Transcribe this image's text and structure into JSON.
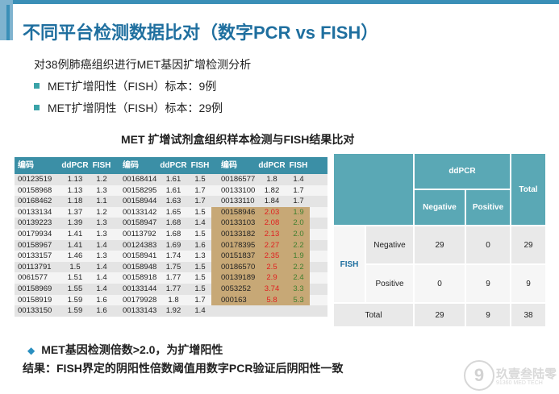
{
  "slide": {
    "title": "不同平台检测数据比对（数字PCR vs FISH）",
    "intro": "对38例肺癌组织进行MET基因扩增检测分析",
    "bullets": [
      "MET扩增阳性（FISH）标本：9例",
      "MET扩增阴性（FISH）标本：29例"
    ],
    "table_title": "MET 扩增试剂盒组织样本检测与FISH结果比对",
    "note1": "MET基因检测倍数>2.0，为扩增阳性",
    "note2": "结果：FISH界定的阴阳性倍数阈值用数字PCR验证后阴阳性一致",
    "logo": {
      "text": "玖壹叁陆零",
      "sub": "91360 MED TECH",
      "glyph": "9"
    }
  },
  "data_table": {
    "headers": [
      "编码",
      "ddPCR",
      "FISH",
      "编码",
      "ddPCR",
      "FISH",
      "编码",
      "ddPCR",
      "FISH"
    ],
    "rows": [
      [
        [
          "00123519",
          "1.13",
          "1.2"
        ],
        [
          "00168414",
          "1.61",
          "1.5"
        ],
        [
          "00186577",
          "1.8",
          "1.4"
        ]
      ],
      [
        [
          "00158968",
          "1.13",
          "1.3"
        ],
        [
          "00158295",
          "1.61",
          "1.7"
        ],
        [
          "00133100",
          "1.82",
          "1.7"
        ]
      ],
      [
        [
          "00168462",
          "1.18",
          "1.1"
        ],
        [
          "00158944",
          "1.63",
          "1.7"
        ],
        [
          "00133110",
          "1.84",
          "1.7"
        ]
      ],
      [
        [
          "00133134",
          "1.37",
          "1.2"
        ],
        [
          "00133142",
          "1.65",
          "1.5"
        ],
        [
          "00158946",
          "2.03",
          "1.9"
        ]
      ],
      [
        [
          "00139223",
          "1.39",
          "1.3"
        ],
        [
          "00158947",
          "1.68",
          "1.4"
        ],
        [
          "00133103",
          "2.08",
          "2.0"
        ]
      ],
      [
        [
          "00179934",
          "1.41",
          "1.3"
        ],
        [
          "00113792",
          "1.68",
          "1.5"
        ],
        [
          "00133182",
          "2.13",
          "2.0"
        ]
      ],
      [
        [
          "00158967",
          "1.41",
          "1.4"
        ],
        [
          "00124383",
          "1.69",
          "1.6"
        ],
        [
          "00178395",
          "2.27",
          "2.2"
        ]
      ],
      [
        [
          "00133157",
          "1.46",
          "1.3"
        ],
        [
          "00158941",
          "1.74",
          "1.3"
        ],
        [
          "00151837",
          "2.35",
          "1.9"
        ]
      ],
      [
        [
          "00113791",
          "1.5",
          "1.4"
        ],
        [
          "00158948",
          "1.75",
          "1.5"
        ],
        [
          "00186570",
          "2.5",
          "2.2"
        ]
      ],
      [
        [
          "0061577",
          "1.51",
          "1.4"
        ],
        [
          "00158918",
          "1.77",
          "1.5"
        ],
        [
          "00139189",
          "2.9",
          "2.4"
        ]
      ],
      [
        [
          "00158969",
          "1.55",
          "1.4"
        ],
        [
          "00133144",
          "1.77",
          "1.5"
        ],
        [
          "0053252",
          "3.74",
          "3.3"
        ]
      ],
      [
        [
          "00158919",
          "1.59",
          "1.6"
        ],
        [
          "00179928",
          "1.8",
          "1.7"
        ],
        [
          "000163",
          "5.8",
          "5.3"
        ]
      ],
      [
        [
          "00133150",
          "1.59",
          "1.6"
        ],
        [
          "00133143",
          "1.92",
          "1.4"
        ],
        null
      ]
    ],
    "highlight_rows_third_group": [
      3,
      4,
      5,
      6,
      7,
      8,
      9,
      10,
      11
    ]
  },
  "summary_table": {
    "ddpcr_label": "ddPCR",
    "total_label": "Total",
    "fish_label": "FISH",
    "negative": "Negative",
    "positive": "Positive",
    "neg_neg": "29",
    "neg_pos": "0",
    "neg_total": "29",
    "pos_neg": "0",
    "pos_pos": "9",
    "pos_total": "9",
    "total_neg": "29",
    "total_pos": "9",
    "total_total": "38"
  },
  "colors": {
    "title": "#1f6f9f",
    "header": "#3b8fa6",
    "highlight": "#c7a876",
    "ddpcr_pos": "#e02020",
    "fish_pos": "#3f7f2f"
  }
}
